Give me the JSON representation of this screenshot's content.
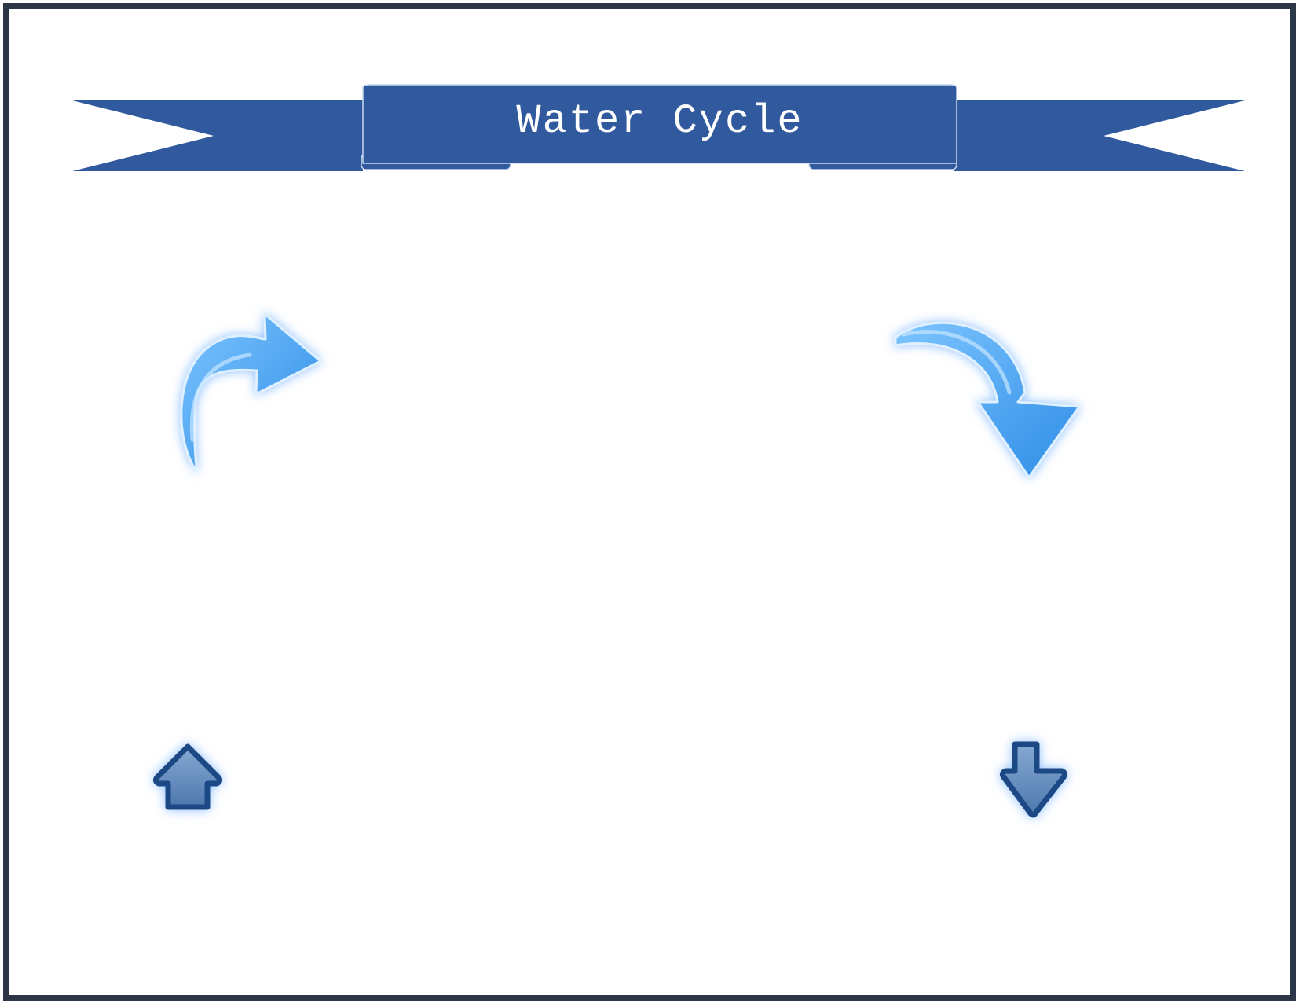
{
  "banner": {
    "title": "Water Cycle",
    "fill_color": "#31599d",
    "outline_color": "#c9d8ee"
  },
  "frame_color": "#2b3646",
  "arrows": [
    {
      "name": "curved-arrow-up-right-icon",
      "color": "#4aa3f0"
    },
    {
      "name": "curved-arrow-down-right-icon",
      "color": "#4aa3f0"
    },
    {
      "name": "up-arrow-icon",
      "color": "#5b86b8"
    },
    {
      "name": "down-arrow-icon",
      "color": "#5b86b8"
    }
  ]
}
